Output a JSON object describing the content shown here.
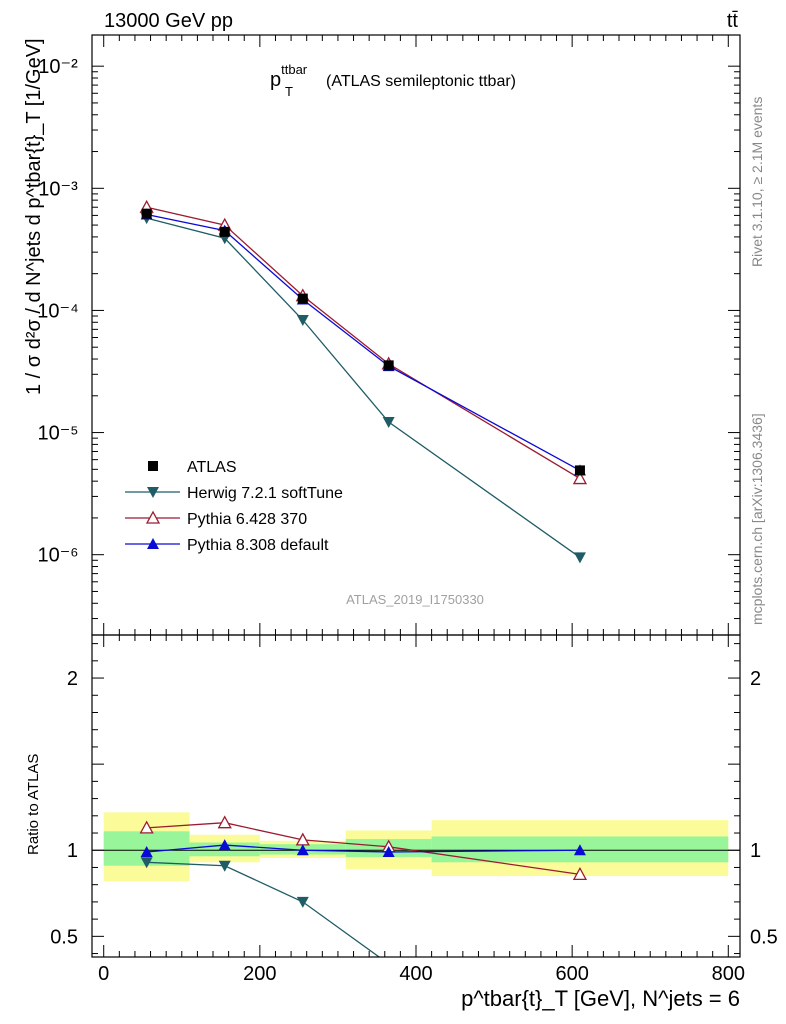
{
  "header": {
    "left": "13000 GeV pp",
    "right": "tt̄"
  },
  "side": {
    "rivet": "Rivet 3.1.10, ≥ 2.1M events",
    "mcplots": "mcplots.cern.ch [arXiv:1306.3436]"
  },
  "chart_data": {
    "type": "line",
    "title_main": "p",
    "title_sup": "ttbar",
    "title_sub": "T",
    "title_rest": "(ATLAS semileptonic ttbar)",
    "analysis_id": "ATLAS_2019_I1750330",
    "ylabel_top": "1 / σ d²σ / d N^jets d p^tbar{t}_T [1/GeV]",
    "ylabel_bottom": "Ratio to ATLAS",
    "xlabel": "p^tbar{t}_T [GeV], N^jets = 6",
    "x_ticks": [
      0,
      200,
      400,
      600,
      800
    ],
    "xlim": [
      -15,
      815
    ],
    "ylim_top": [
      2.2e-07,
      0.018
    ],
    "ylim_ratio": [
      0.38,
      2.25
    ],
    "y_ticks_top": [
      "10⁻²",
      "10⁻³",
      "10⁻⁴",
      "10⁻⁵",
      "10⁻⁶"
    ],
    "y_ticks_ratio": [
      "2",
      "1",
      "0.5"
    ],
    "y_scale_top": "log",
    "legend_position": "lower-left",
    "bins": [
      [
        0,
        110
      ],
      [
        110,
        200
      ],
      [
        200,
        310
      ],
      [
        310,
        420
      ],
      [
        420,
        800
      ]
    ],
    "x": [
      55,
      155,
      255,
      365,
      610
    ],
    "uncertainty_bands": {
      "inner": [
        [
          0.91,
          1.11
        ],
        [
          0.965,
          1.045
        ],
        [
          0.975,
          1.035
        ],
        [
          0.96,
          1.065
        ],
        [
          0.93,
          1.08
        ]
      ],
      "outer": [
        [
          0.82,
          1.22
        ],
        [
          0.93,
          1.09
        ],
        [
          0.955,
          1.055
        ],
        [
          0.89,
          1.115
        ],
        [
          0.85,
          1.175
        ]
      ],
      "inner_color": "#99f599",
      "outer_color": "#fbfb99"
    },
    "series": [
      {
        "name": "ATLAS",
        "color": "#000000",
        "marker": "square",
        "values": [
          0.00062,
          0.00044,
          0.000125,
          3.55e-05,
          4.9e-06
        ],
        "ratio": [
          1.0,
          1.0,
          1.0,
          1.0,
          1.0
        ]
      },
      {
        "name": "Herwig 7.2.1 softTune",
        "color": "#1f5c66",
        "marker": "triangle-down",
        "values": [
          0.00057,
          0.00039,
          8.35e-05,
          1.22e-05,
          9.5e-07
        ],
        "ratio": [
          0.93,
          0.91,
          0.7,
          0.34,
          0.19
        ]
      },
      {
        "name": "Pythia 6.428 370",
        "color": "#9b1b30",
        "marker": "triangle-open",
        "values": [
          0.0007,
          0.0005,
          0.000132,
          3.65e-05,
          4.2e-06
        ],
        "ratio": [
          1.13,
          1.16,
          1.06,
          1.02,
          0.86
        ]
      },
      {
        "name": "Pythia 8.308 default",
        "color": "#0a0ad6",
        "marker": "triangle-up",
        "values": [
          0.00061,
          0.00045,
          0.000123,
          3.5e-05,
          4.9e-06
        ],
        "ratio": [
          0.99,
          1.03,
          1.0,
          0.99,
          1.0
        ]
      }
    ]
  }
}
